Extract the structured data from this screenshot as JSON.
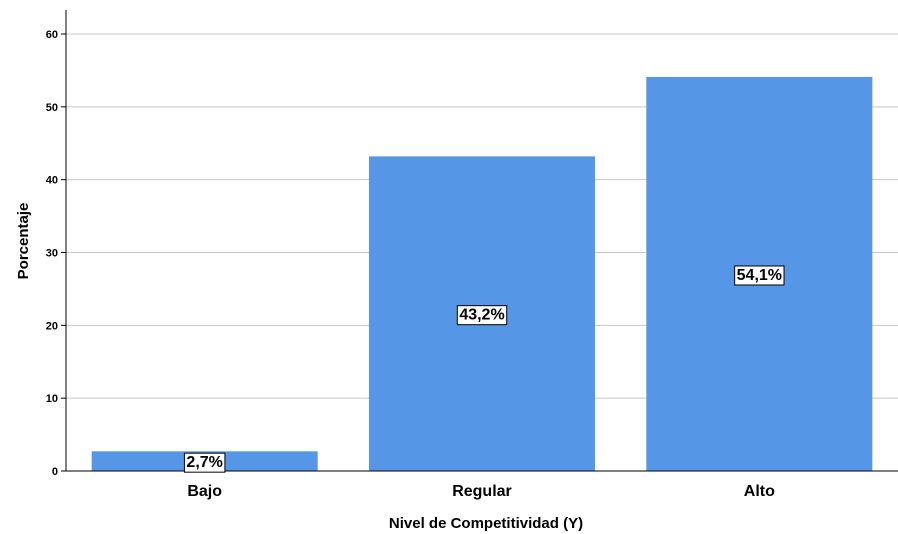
{
  "chart_data": {
    "type": "bar",
    "categories": [
      "Bajo",
      "Regular",
      "Alto"
    ],
    "values": [
      2.7,
      43.2,
      54.1
    ],
    "data_labels": [
      "2,7%",
      "43,2%",
      "54,1%"
    ],
    "xlabel": "Nivel de Competitividad (Y)",
    "ylabel": "Porcentaje",
    "ylim": [
      0,
      60
    ],
    "yticks": [
      0,
      10,
      20,
      30,
      40,
      50,
      60
    ],
    "grid": true,
    "bar_color": "#5596E6"
  }
}
